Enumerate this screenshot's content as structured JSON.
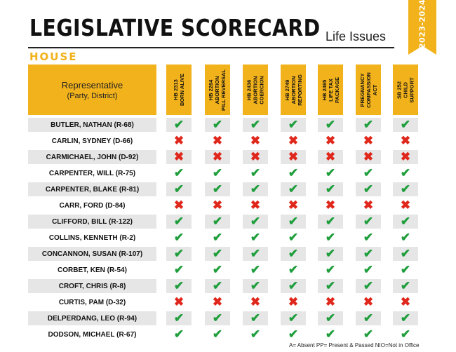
{
  "header": {
    "title": "LEGISLATIVE SCORECARD",
    "subtitle": "Life Issues",
    "section": "HOUSE",
    "year_banner": "2023-2024"
  },
  "table": {
    "rep_header": "Representative",
    "rep_subheader": "(Party, District)",
    "bills": [
      "HB 2313\nBORN ALIVE",
      "HB 2264\nABORTION\nPILL REVERSAL",
      "HB 2436\nABORTION\nCOERCION",
      "HB 2749\nABORTION\nREPORTING",
      "HB 2465\nLIFE TAX\nPACKAGE",
      "PREGNANCY\nCOMPASSION\nACT",
      "SB 252\nCHILD\nSUPPORT"
    ],
    "rows": [
      {
        "name": "BUTLER, NATHAN (R-68)",
        "votes": [
          "yes",
          "yes",
          "yes",
          "yes",
          "yes",
          "yes",
          "yes"
        ]
      },
      {
        "name": "CARLIN, SYDNEY (D-66)",
        "votes": [
          "no",
          "no",
          "no",
          "no",
          "no",
          "no",
          "no"
        ]
      },
      {
        "name": "CARMICHAEL, JOHN (D-92)",
        "votes": [
          "no",
          "no",
          "no",
          "no",
          "no",
          "no",
          "no"
        ]
      },
      {
        "name": "CARPENTER, WILL (R-75)",
        "votes": [
          "yes",
          "yes",
          "yes",
          "yes",
          "yes",
          "yes",
          "yes"
        ]
      },
      {
        "name": "CARPENTER, BLAKE (R-81)",
        "votes": [
          "yes",
          "yes",
          "yes",
          "yes",
          "yes",
          "yes",
          "yes"
        ]
      },
      {
        "name": "CARR, FORD (D-84)",
        "votes": [
          "no",
          "no",
          "no",
          "no",
          "no",
          "no",
          "no"
        ]
      },
      {
        "name": "CLIFFORD, BILL (R-122)",
        "votes": [
          "yes",
          "yes",
          "yes",
          "yes",
          "yes",
          "yes",
          "yes"
        ]
      },
      {
        "name": "COLLINS, KENNETH (R-2)",
        "votes": [
          "yes",
          "yes",
          "yes",
          "yes",
          "yes",
          "yes",
          "yes"
        ]
      },
      {
        "name": "CONCANNON, SUSAN (R-107)",
        "votes": [
          "yes",
          "yes",
          "yes",
          "yes",
          "yes",
          "yes",
          "yes"
        ]
      },
      {
        "name": "CORBET, KEN (R-54)",
        "votes": [
          "yes",
          "yes",
          "yes",
          "yes",
          "yes",
          "yes",
          "yes"
        ]
      },
      {
        "name": "CROFT, CHRIS (R-8)",
        "votes": [
          "yes",
          "yes",
          "yes",
          "yes",
          "yes",
          "yes",
          "yes"
        ]
      },
      {
        "name": "CURTIS, PAM (D-32)",
        "votes": [
          "no",
          "no",
          "no",
          "no",
          "no",
          "no",
          "no"
        ]
      },
      {
        "name": "DELPERDANG, LEO (R-94)",
        "votes": [
          "yes",
          "yes",
          "yes",
          "yes",
          "yes",
          "yes",
          "yes"
        ]
      },
      {
        "name": "DODSON, MICHAEL (R-67)",
        "votes": [
          "yes",
          "yes",
          "yes",
          "yes",
          "yes",
          "yes",
          "yes"
        ]
      }
    ]
  },
  "symbols": {
    "yes": "✔",
    "no": "✖"
  },
  "colors": {
    "accent": "#f2b21c",
    "yes": "#1f9e3c",
    "no": "#e0271c",
    "row_shade": "#e6e6e6"
  },
  "footer": {
    "legend": "A= Absent PP= Present & Passed NIO=Not in Office"
  }
}
